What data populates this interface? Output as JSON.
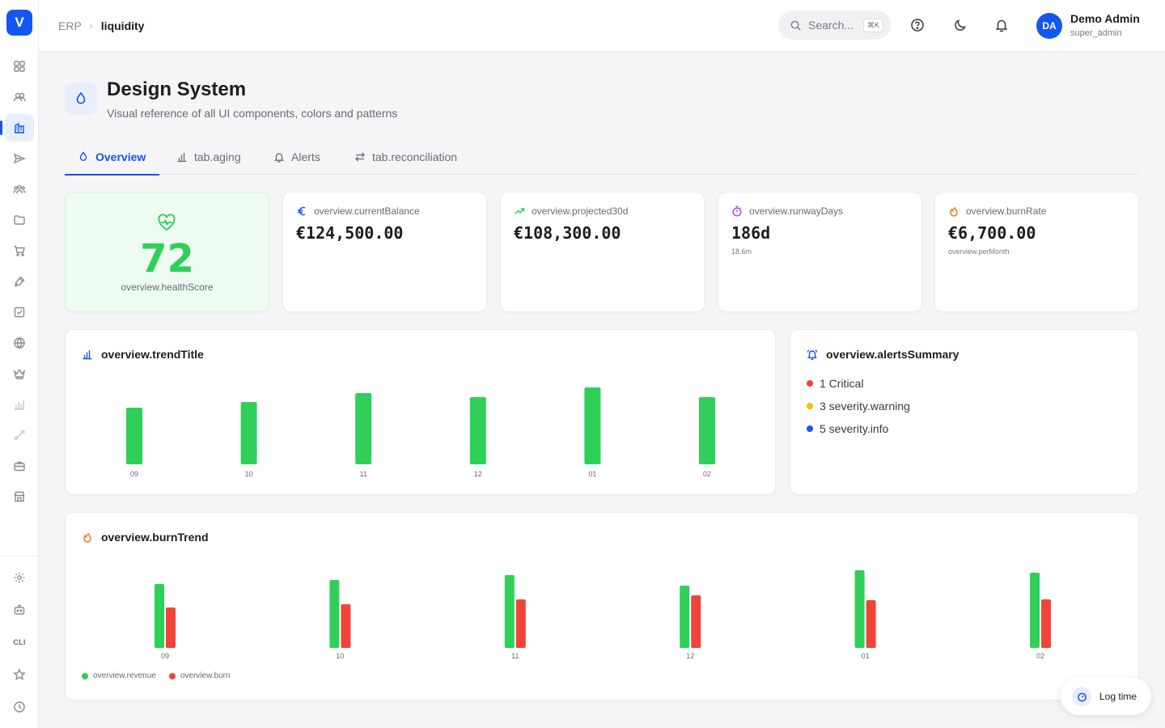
{
  "app": {
    "logo_letter": "V"
  },
  "header": {
    "breadcrumb_root": "ERP",
    "breadcrumb_current": "liquidity",
    "search_placeholder": "Search...",
    "search_shortcut": "⌘K",
    "user_initials": "DA",
    "user_name": "Demo Admin",
    "user_role": "super_admin"
  },
  "sidebar": {
    "items": [
      "grid-icon",
      "users-icon",
      "building-icon",
      "send-icon",
      "team-icon",
      "folder-icon",
      "cart-icon",
      "pen-icon",
      "checkbox-icon",
      "globe-icon",
      "crown-icon",
      "bar-chart-icon",
      "route-icon",
      "briefcase-icon",
      "store-icon"
    ],
    "active_index": 2,
    "bottom_items": [
      "settings-icon",
      "robot-icon",
      "cli",
      "star-icon",
      "clock-icon"
    ],
    "cli_label": "CLI"
  },
  "page": {
    "title": "Design System",
    "subtitle": "Visual reference of all UI components, colors and patterns"
  },
  "tabs": [
    {
      "label": "Overview",
      "active": true
    },
    {
      "label": "tab.aging",
      "active": false
    },
    {
      "label": "Alerts",
      "active": false
    },
    {
      "label": "tab.reconciliation",
      "active": false
    }
  ],
  "health": {
    "value": "72",
    "label": "overview.healthScore"
  },
  "stats": [
    {
      "label": "overview.currentBalance",
      "value": "€124,500.00",
      "sub": ""
    },
    {
      "label": "overview.projected30d",
      "value": "€108,300.00",
      "sub": ""
    },
    {
      "label": "overview.runwayDays",
      "value": "186d",
      "sub": "18.6m"
    },
    {
      "label": "overview.burnRate",
      "value": "€6,700.00",
      "sub": "overview.perMonth"
    }
  ],
  "trend": {
    "title": "overview.trendTitle"
  },
  "alerts_summary": {
    "title": "overview.alertsSummary",
    "items": [
      {
        "text": "1 Critical",
        "color": "#f0443a"
      },
      {
        "text": "3 severity.warning",
        "color": "#f5c400"
      },
      {
        "text": "5 severity.info",
        "color": "#1456f0"
      }
    ]
  },
  "burn": {
    "title": "overview.burnTrend"
  },
  "chart_data": [
    {
      "type": "bar",
      "title": "overview.trendTitle",
      "categories": [
        "09",
        "10",
        "11",
        "12",
        "01",
        "02"
      ],
      "values": [
        70,
        77,
        88,
        83,
        95,
        83
      ],
      "ylim": [
        0,
        100
      ],
      "color": "#2fcf5a",
      "grid": false
    },
    {
      "type": "bar",
      "title": "overview.burnTrend",
      "categories": [
        "09",
        "10",
        "11",
        "12",
        "01",
        "02"
      ],
      "series": [
        {
          "name": "overview.revenue",
          "values": [
            79,
            84,
            90,
            77,
            96,
            93
          ],
          "color": "#2fcf5a"
        },
        {
          "name": "overview.burn",
          "values": [
            50,
            54,
            60,
            65,
            59,
            60
          ],
          "color": "#f0443a"
        }
      ],
      "ylim": [
        0,
        100
      ],
      "legend": "bottom-left",
      "grid": false
    }
  ],
  "log_time": {
    "label": "Log time"
  }
}
